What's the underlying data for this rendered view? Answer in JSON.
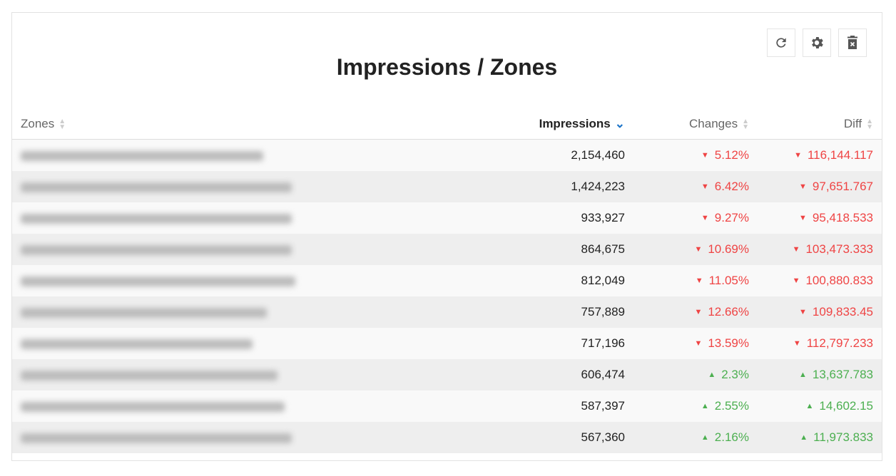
{
  "title": "Impressions / Zones",
  "toolbar": {
    "icons": [
      "refresh-icon",
      "gear-icon",
      "delete-icon"
    ]
  },
  "columns": {
    "zones": "Zones",
    "impressions": "Impressions",
    "changes": "Changes",
    "diff": "Diff"
  },
  "sort": {
    "column": "Impressions",
    "direction": "descending"
  },
  "colors": {
    "down": "#ef4444",
    "up": "#4caf50",
    "accent": "#1a73c8"
  },
  "rows": [
    {
      "impressions": "2,154,460",
      "change": "5.12%",
      "diff": "116,144.117",
      "trend": "down"
    },
    {
      "impressions": "1,424,223",
      "change": "6.42%",
      "diff": "97,651.767",
      "trend": "down"
    },
    {
      "impressions": "933,927",
      "change": "9.27%",
      "diff": "95,418.533",
      "trend": "down"
    },
    {
      "impressions": "864,675",
      "change": "10.69%",
      "diff": "103,473.333",
      "trend": "down"
    },
    {
      "impressions": "812,049",
      "change": "11.05%",
      "diff": "100,880.833",
      "trend": "down"
    },
    {
      "impressions": "757,889",
      "change": "12.66%",
      "diff": "109,833.45",
      "trend": "down"
    },
    {
      "impressions": "717,196",
      "change": "13.59%",
      "diff": "112,797.233",
      "trend": "down"
    },
    {
      "impressions": "606,474",
      "change": "2.3%",
      "diff": "13,637.783",
      "trend": "up"
    },
    {
      "impressions": "587,397",
      "change": "2.55%",
      "diff": "14,602.15",
      "trend": "up"
    },
    {
      "impressions": "567,360",
      "change": "2.16%",
      "diff": "11,973.833",
      "trend": "up"
    }
  ]
}
